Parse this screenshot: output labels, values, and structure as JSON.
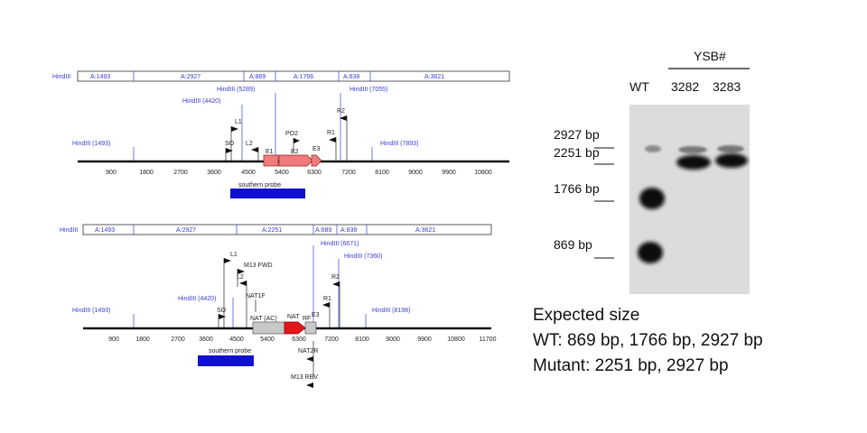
{
  "top_map": {
    "segments": [
      {
        "label": "HindIII"
      },
      {
        "label": "A:1493"
      },
      {
        "label": "A:2927"
      },
      {
        "label": "A:869"
      },
      {
        "label": "A:1766"
      },
      {
        "label": "A:838"
      },
      {
        "label": "A:3621"
      }
    ],
    "sites": [
      "HindIII (1493)",
      "HindIII (4420)",
      "HindIII (5289)",
      "HindIII (7055)",
      "HindIII (7893)"
    ],
    "primers": [
      "L1",
      "SO",
      "L2",
      "PO2",
      "R1",
      "R2"
    ],
    "exons": [
      "E1",
      "E2",
      "E3"
    ],
    "ticks": [
      "900",
      "1800",
      "2700",
      "3600",
      "4500",
      "5400",
      "6300",
      "7200",
      "8100",
      "9000",
      "9900",
      "10800"
    ],
    "probe_label": "southern probe"
  },
  "bottom_map": {
    "segments": [
      {
        "label": "HindIII"
      },
      {
        "label": "A:1493"
      },
      {
        "label": "A:2927"
      },
      {
        "label": "A:2251"
      },
      {
        "label": "A:689"
      },
      {
        "label": "A:838"
      },
      {
        "label": "A:3621"
      }
    ],
    "sites": [
      "HindIII (1493)",
      "HindIII (4420)",
      "HindIII (6671)",
      "HindIII (7360)",
      "HindIII (8198)"
    ],
    "primers": [
      "L1",
      "M13 FWD",
      "L2",
      "NAT1F",
      "SO",
      "R2",
      "R1",
      "NAT2R",
      "M13 REV"
    ],
    "features": [
      "NAT (AC)",
      "NAT",
      "E3",
      "RF"
    ],
    "ticks": [
      "900",
      "1800",
      "2700",
      "3600",
      "4500",
      "5400",
      "6300",
      "7200",
      "8100",
      "9000",
      "9900",
      "10800",
      "11700"
    ],
    "probe_label": "southern probe"
  },
  "gel": {
    "header": "YSB#",
    "lanes": [
      "WT",
      "3282",
      "3283"
    ],
    "markers": [
      "2927 bp",
      "2251 bp",
      "1766 bp",
      "869 bp"
    ]
  },
  "expected": {
    "title": "Expected size",
    "wt": "WT: 869 bp, 1766 bp, 2927 bp",
    "mutant": "Mutant: 2251 bp, 2927 bp"
  },
  "colors": {
    "site_line": "#3b3bd6",
    "exon_fill": "#f07c7c",
    "nat_fill": "#e01818",
    "probe_fill": "#1010d0",
    "gel_bg": "#dcdcdc"
  }
}
